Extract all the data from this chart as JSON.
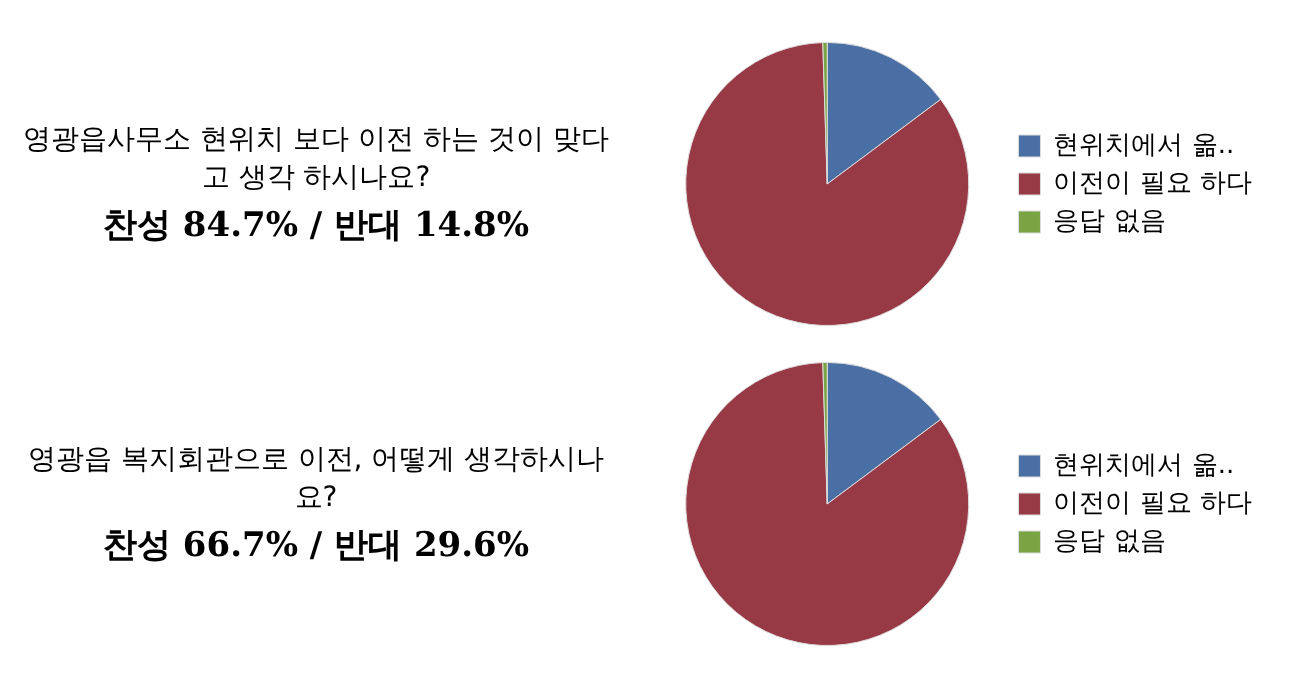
{
  "chart_data": [
    {
      "type": "pie",
      "title": "영광읍사무소 현위치 보다 이전 하는 것이 맞다고 생각 하시나요?",
      "subtitle": "찬성 84.7% / 반대 14.8%",
      "categories": [
        "현위치에서 옮..",
        "이전이 필요 하다",
        "응답 없음"
      ],
      "values": [
        14.8,
        84.7,
        0.5
      ],
      "colors": [
        "#4a6fa5",
        "#983a46",
        "#7aa444"
      ],
      "legend": "right"
    },
    {
      "type": "pie",
      "title": "영광읍 복지회관으로 이전, 어떻게 생각하시나요?",
      "subtitle": "찬성 66.7% / 반대 29.6%",
      "categories": [
        "현위치에서 옮..",
        "이전이 필요 하다",
        "응답 없음"
      ],
      "values": [
        14.8,
        84.7,
        0.5
      ],
      "colors": [
        "#4a6fa5",
        "#983a46",
        "#7aa444"
      ],
      "legend": "right"
    }
  ]
}
